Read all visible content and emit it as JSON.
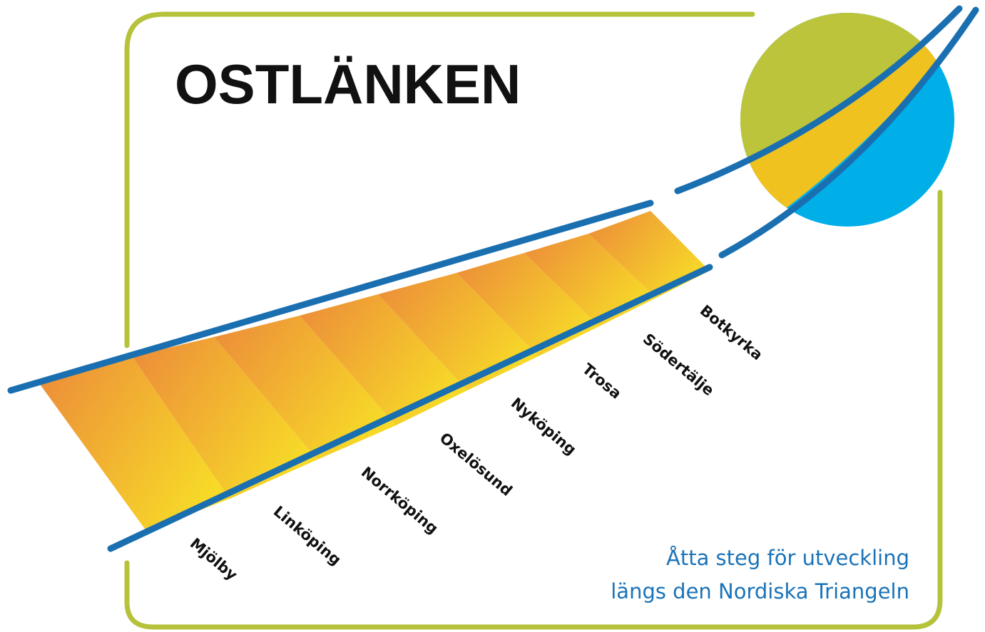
{
  "title": "OSTLÄNKEN",
  "stations": [
    "Mjölby",
    "Linköping",
    "Norrköping",
    "Oxelösund",
    "Nyköping",
    "Trosa",
    "Södertälje",
    "Botkyrka"
  ],
  "tagline": [
    "Åtta  steg för utveckling",
    "längs den Nordiska  Triangeln"
  ]
}
